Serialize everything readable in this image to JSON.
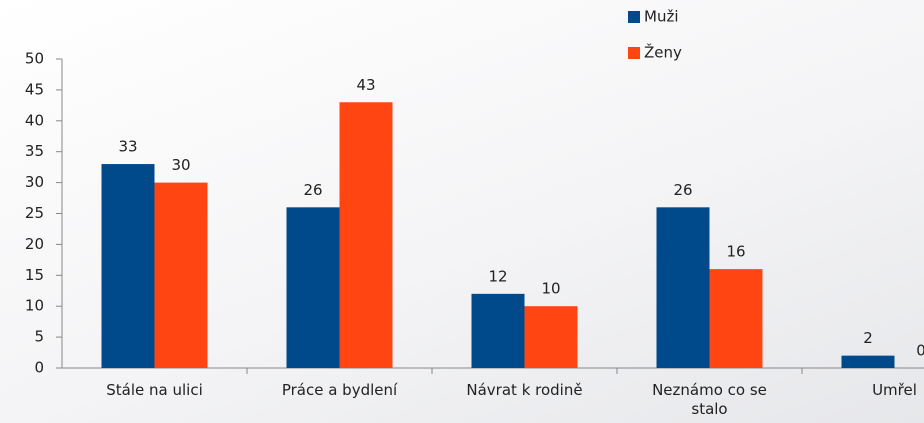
{
  "chart_data": {
    "type": "bar",
    "categories": [
      "Stále na ulici",
      "Práce a bydlení",
      "Návrat k rodině",
      "Neznámo co se stalo",
      "Umřel"
    ],
    "series": [
      {
        "name": "Muži",
        "color": "#004a8c",
        "values": [
          33,
          26,
          12,
          26,
          2
        ]
      },
      {
        "name": "Ženy",
        "color": "#ff4612",
        "values": [
          30,
          43,
          10,
          16,
          0
        ]
      }
    ],
    "ylim": [
      0,
      50
    ],
    "yticks": [
      0,
      5,
      10,
      15,
      20,
      25,
      30,
      35,
      40,
      45,
      50
    ],
    "grid": false,
    "legend": "top"
  }
}
